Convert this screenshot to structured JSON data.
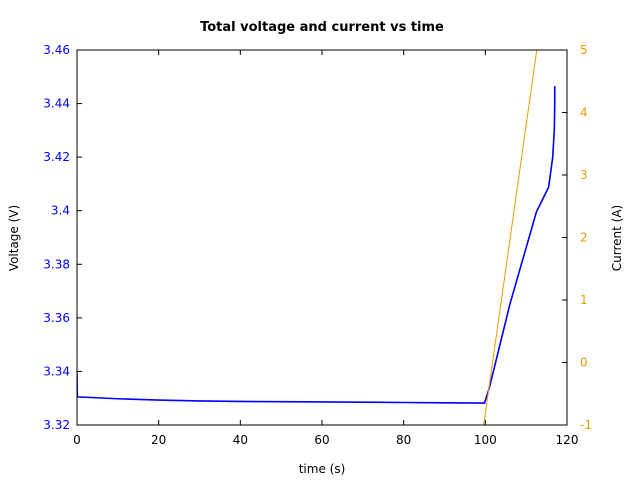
{
  "chart_data": {
    "type": "line",
    "title": "Total voltage and current vs time",
    "xlabel": "time (s)",
    "ylabel_left": "Voltage (V)",
    "ylabel_right": "Current (A)",
    "xlim": [
      0,
      120
    ],
    "ylim_left": [
      3.32,
      3.46
    ],
    "ylim_right": [
      -1,
      5
    ],
    "x_ticks": [
      0,
      20,
      40,
      60,
      80,
      100,
      120
    ],
    "y_left_ticks": [
      3.32,
      3.34,
      3.36,
      3.38,
      3.4,
      3.42,
      3.44,
      3.46
    ],
    "y_right_ticks": [
      -1,
      0,
      1,
      2,
      3,
      4,
      5
    ],
    "x_tick_labels": [
      "0",
      "20",
      "40",
      "60",
      "80",
      "100",
      "120"
    ],
    "y_left_tick_labels": [
      "3.32",
      "3.34",
      "3.36",
      "3.38",
      "3.4",
      "3.42",
      "3.44",
      "3.46"
    ],
    "y_right_tick_labels": [
      "-1",
      "0",
      "1",
      "2",
      "3",
      "4",
      "5"
    ],
    "grid": false,
    "colors": {
      "voltage": "#0000ff",
      "current": "#e69f00"
    },
    "series": [
      {
        "axis": "left",
        "x": [
          0,
          0.05,
          0.1,
          10,
          20,
          30,
          40,
          50,
          60,
          70,
          80,
          90,
          99.8,
          101,
          106,
          112.5,
          115.5,
          116.5,
          116.9,
          117,
          117
        ],
        "y": [
          3.3395,
          3.3325,
          3.3305,
          3.3298,
          3.3293,
          3.329,
          3.3288,
          3.3287,
          3.3286,
          3.3285,
          3.3284,
          3.3283,
          3.3282,
          3.334,
          3.365,
          3.3995,
          3.4088,
          3.42,
          3.4305,
          3.44,
          3.4465
        ]
      },
      {
        "axis": "right",
        "x": [
          99.6,
          112.6
        ],
        "y": [
          -1,
          5
        ]
      }
    ]
  }
}
